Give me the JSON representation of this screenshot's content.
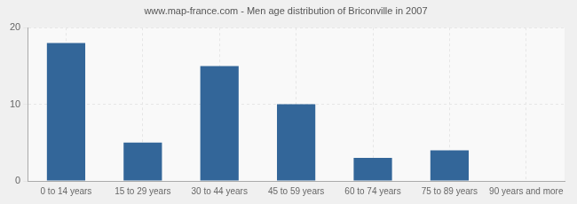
{
  "chart_data": {
    "type": "bar",
    "title": "www.map-france.com - Men age distribution of Briconville in 2007",
    "categories": [
      "0 to 14 years",
      "15 to 29 years",
      "30 to 44 years",
      "45 to 59 years",
      "60 to 74 years",
      "75 to 89 years",
      "90 years and more"
    ],
    "values": [
      18,
      5,
      15,
      10,
      3,
      4,
      0
    ],
    "color": "#336699",
    "ylim": [
      0,
      20
    ],
    "yticks": [
      0,
      10,
      20
    ],
    "grid": true
  }
}
